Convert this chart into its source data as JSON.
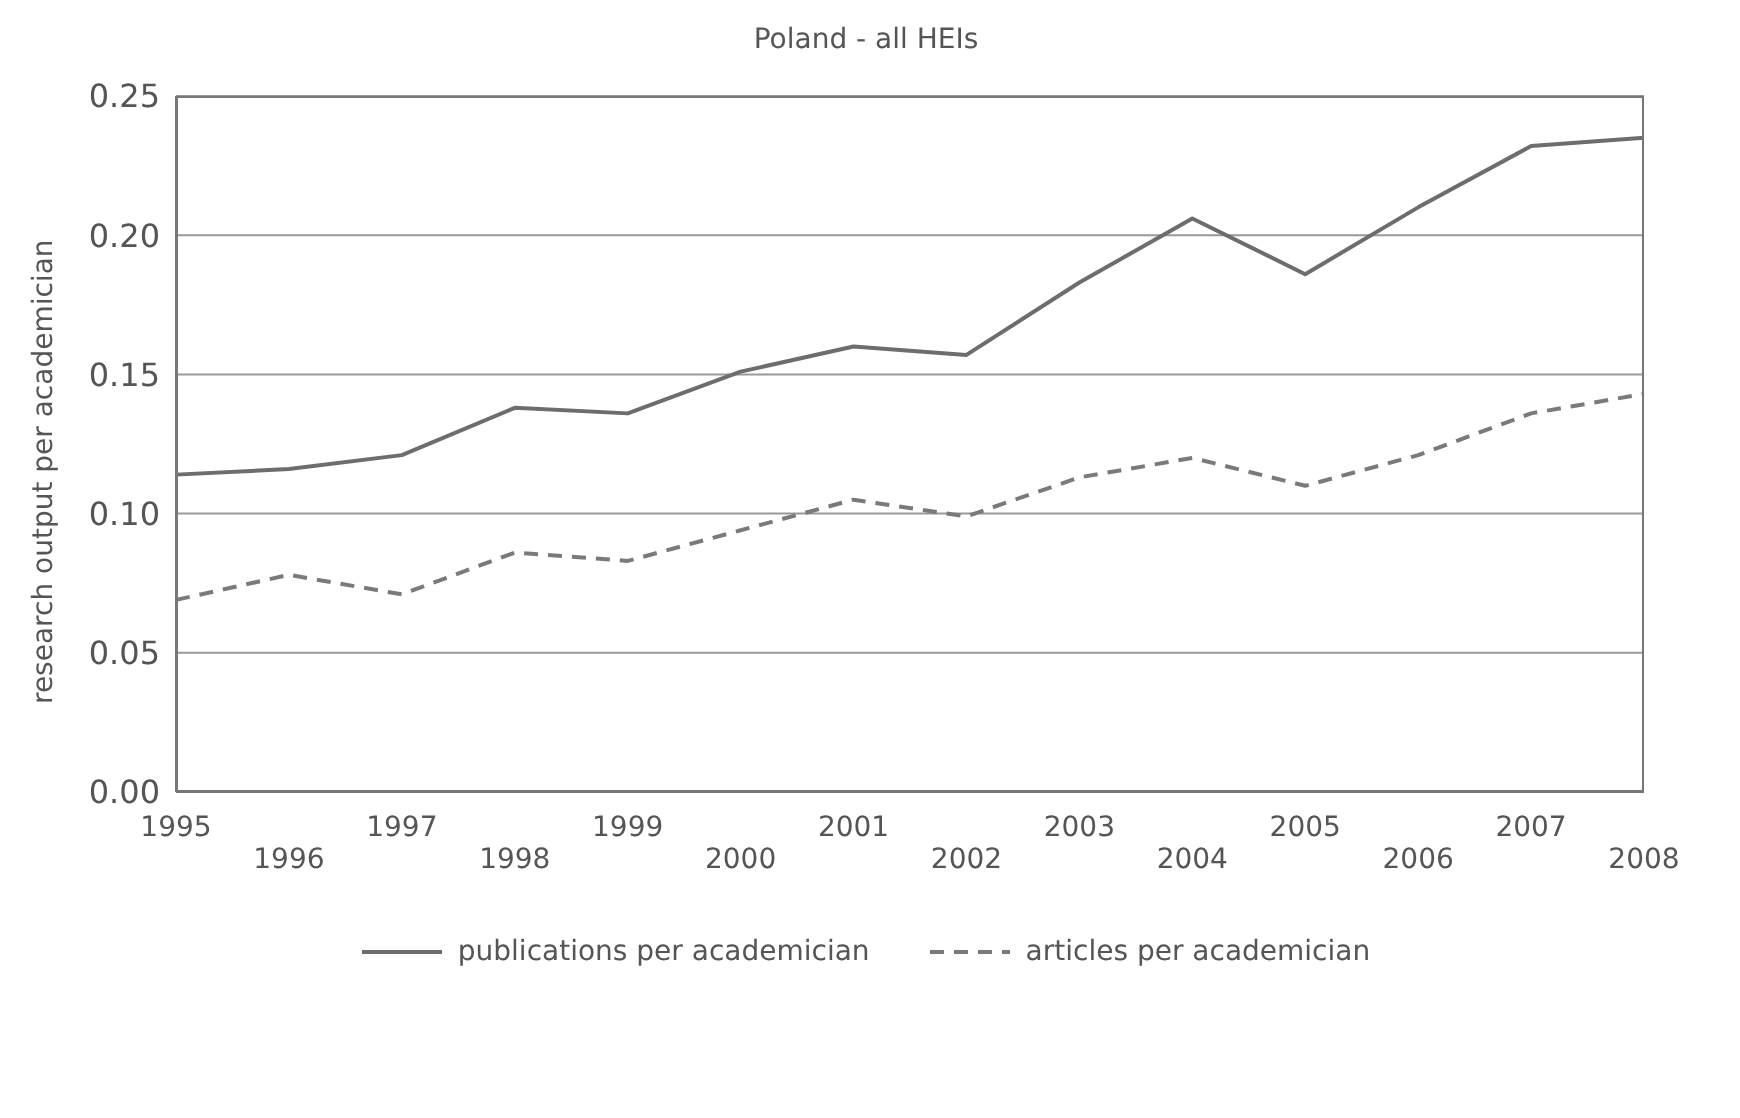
{
  "chart_data": {
    "type": "line",
    "title": "Poland - all HEIs",
    "ylabel": "research output per academician",
    "categories": [
      "1995",
      "1996",
      "1997",
      "1998",
      "1999",
      "2000",
      "2001",
      "2002",
      "2003",
      "2004",
      "2005",
      "2006",
      "2007",
      "2008"
    ],
    "series": [
      {
        "name": "publications per academician",
        "color": "#6d6d6d",
        "line_style": "solid",
        "values": [
          0.114,
          0.116,
          0.121,
          0.138,
          0.136,
          0.151,
          0.16,
          0.157,
          0.183,
          0.206,
          0.186,
          0.21,
          0.232,
          0.235
        ]
      },
      {
        "name": "articles per academician",
        "color": "#7a7a7a",
        "line_style": "dashed",
        "values": [
          0.069,
          0.078,
          0.071,
          0.086,
          0.083,
          0.094,
          0.105,
          0.099,
          0.113,
          0.12,
          0.11,
          0.121,
          0.136,
          0.143
        ]
      }
    ],
    "ylim": [
      0,
      0.25
    ],
    "yticks": [
      {
        "value": 0,
        "label": "0.00"
      },
      {
        "value": 0.05,
        "label": "0.05"
      },
      {
        "value": 0.1,
        "label": "0.10"
      },
      {
        "value": 0.15,
        "label": "0.15"
      },
      {
        "value": 0.2,
        "label": "0.20"
      },
      {
        "value": 0.25,
        "label": "0.25"
      }
    ],
    "grid": "y",
    "legend": "bottom",
    "marker": "none"
  }
}
